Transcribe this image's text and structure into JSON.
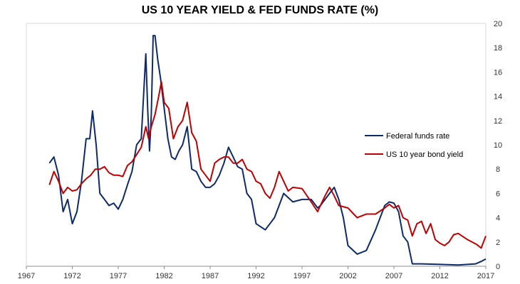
{
  "chart_data": {
    "type": "line",
    "title": "US 10 YEAR YIELD & FED FUNDS RATE (%)",
    "xlabel": "",
    "ylabel": "",
    "xlim": [
      1967,
      2017
    ],
    "ylim": [
      0,
      20
    ],
    "x_ticks": [
      "1967",
      "1972",
      "1977",
      "1982",
      "1987",
      "1992",
      "1997",
      "2002",
      "2007",
      "2012",
      "2017"
    ],
    "y_ticks": [
      "0",
      "2",
      "4",
      "6",
      "8",
      "10",
      "12",
      "14",
      "16",
      "18",
      "20"
    ],
    "y_axis_side": "right",
    "grid": false,
    "legend_position": "center-right",
    "series": [
      {
        "name": "Federal funds rate",
        "color": "#0d2a6b",
        "x": [
          1969.5,
          1970.0,
          1970.5,
          1971.0,
          1971.5,
          1972.0,
          1972.5,
          1973.0,
          1973.5,
          1973.9,
          1974.2,
          1974.6,
          1975.0,
          1975.5,
          1976.0,
          1976.5,
          1977.0,
          1977.5,
          1978.0,
          1978.5,
          1979.0,
          1979.5,
          1980.0,
          1980.2,
          1980.4,
          1980.6,
          1980.8,
          1981.0,
          1981.3,
          1981.6,
          1982.0,
          1982.4,
          1982.8,
          1983.2,
          1983.6,
          1984.0,
          1984.5,
          1985.0,
          1985.5,
          1986.0,
          1986.5,
          1987.0,
          1987.5,
          1988.0,
          1988.5,
          1989.0,
          1989.5,
          1990.0,
          1990.5,
          1991.0,
          1991.5,
          1992.0,
          1993.0,
          1994.0,
          1994.5,
          1995.0,
          1996.0,
          1997.0,
          1998.0,
          1998.7,
          1999.0,
          1999.5,
          2000.0,
          2000.5,
          2001.0,
          2001.5,
          2002.0,
          2003.0,
          2004.0,
          2005.0,
          2006.0,
          2006.5,
          2007.0,
          2007.5,
          2008.0,
          2008.5,
          2009.0,
          2010.0,
          2012.0,
          2014.0,
          2015.9,
          2016.5,
          2017.0
        ],
        "values": [
          8.5,
          9.0,
          7.5,
          4.5,
          5.5,
          3.5,
          4.5,
          7.0,
          10.5,
          10.5,
          12.8,
          10.0,
          6.0,
          5.5,
          5.0,
          5.2,
          4.7,
          5.5,
          6.7,
          7.8,
          10.0,
          10.5,
          17.5,
          13.0,
          9.5,
          12.5,
          19.0,
          19.0,
          17.0,
          15.5,
          13.0,
          10.5,
          9.0,
          8.8,
          9.5,
          10.0,
          11.5,
          8.0,
          7.8,
          7.0,
          6.5,
          6.5,
          6.8,
          7.5,
          8.5,
          9.8,
          9.0,
          8.2,
          8.0,
          6.0,
          5.5,
          3.5,
          3.0,
          4.0,
          5.0,
          6.0,
          5.3,
          5.5,
          5.5,
          4.8,
          5.0,
          5.5,
          6.0,
          6.5,
          5.5,
          4.0,
          1.7,
          1.0,
          1.3,
          3.0,
          5.0,
          5.3,
          5.2,
          4.5,
          2.5,
          2.0,
          0.2,
          0.2,
          0.15,
          0.1,
          0.2,
          0.4,
          0.6
        ]
      },
      {
        "name": "US 10 year bond yield",
        "color": "#c00000",
        "x": [
          1969.5,
          1970.0,
          1970.5,
          1971.0,
          1971.5,
          1972.0,
          1972.5,
          1973.0,
          1973.5,
          1974.0,
          1974.5,
          1975.0,
          1975.5,
          1976.0,
          1976.5,
          1977.0,
          1977.5,
          1978.0,
          1978.5,
          1979.0,
          1979.5,
          1980.0,
          1980.3,
          1980.6,
          1981.0,
          1981.4,
          1981.7,
          1982.0,
          1982.5,
          1983.0,
          1983.5,
          1984.0,
          1984.5,
          1985.0,
          1985.5,
          1986.0,
          1986.5,
          1987.0,
          1987.5,
          1988.0,
          1988.5,
          1989.0,
          1989.5,
          1990.0,
          1990.5,
          1991.0,
          1991.5,
          1992.0,
          1992.5,
          1993.0,
          1993.5,
          1994.0,
          1994.5,
          1995.0,
          1995.5,
          1996.0,
          1997.0,
          1998.0,
          1998.7,
          1999.0,
          1999.5,
          2000.0,
          2000.5,
          2001.0,
          2002.0,
          2003.0,
          2004.0,
          2005.0,
          2006.0,
          2006.5,
          2007.0,
          2007.5,
          2008.0,
          2008.5,
          2009.0,
          2009.5,
          2010.0,
          2010.5,
          2011.0,
          2011.5,
          2012.0,
          2012.5,
          2013.0,
          2013.5,
          2014.0,
          2015.0,
          2016.0,
          2016.5,
          2017.0
        ],
        "values": [
          6.7,
          7.8,
          7.0,
          6.0,
          6.5,
          6.2,
          6.3,
          6.8,
          7.2,
          7.5,
          8.0,
          8.0,
          8.2,
          7.7,
          7.5,
          7.5,
          7.4,
          8.3,
          8.6,
          9.2,
          9.8,
          11.5,
          10.5,
          11.5,
          12.5,
          14.0,
          15.2,
          13.5,
          13.0,
          10.5,
          11.5,
          12.0,
          13.5,
          11.0,
          10.3,
          8.0,
          7.5,
          7.0,
          8.5,
          8.8,
          9.0,
          9.0,
          8.5,
          8.5,
          8.8,
          8.0,
          7.8,
          7.0,
          6.8,
          6.0,
          5.6,
          6.5,
          7.8,
          7.0,
          6.2,
          6.5,
          6.4,
          5.3,
          4.5,
          5.0,
          5.8,
          6.5,
          5.8,
          5.0,
          4.8,
          4.0,
          4.3,
          4.3,
          4.8,
          5.1,
          4.8,
          5.0,
          4.0,
          3.8,
          2.5,
          3.5,
          3.7,
          2.7,
          3.5,
          2.2,
          1.9,
          1.7,
          2.0,
          2.6,
          2.7,
          2.2,
          1.8,
          1.5,
          2.5
        ]
      }
    ]
  }
}
